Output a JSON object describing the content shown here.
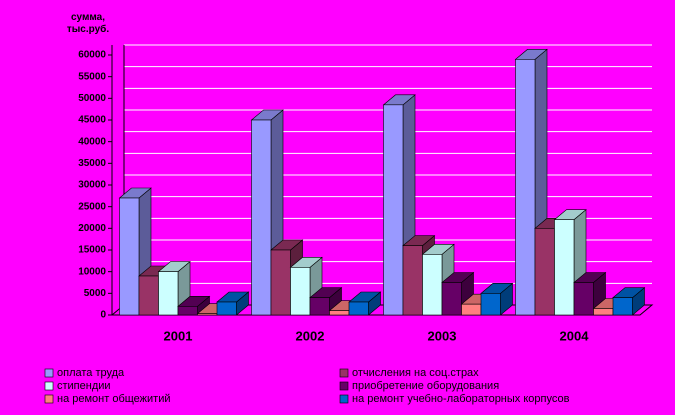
{
  "chart_data": {
    "type": "bar3d",
    "y_label": "сумма, тыс.руб.",
    "categories": [
      "2001",
      "2002",
      "2003",
      "2004"
    ],
    "series": [
      {
        "name": "оплата труда",
        "color": "#9999ff",
        "values": [
          27000,
          45000,
          48500,
          59000
        ]
      },
      {
        "name": "отчисления на соц.страх",
        "color": "#993366",
        "values": [
          9000,
          15000,
          16000,
          20000
        ]
      },
      {
        "name": "стипендии",
        "color": "#ccffff",
        "values": [
          10000,
          11000,
          14000,
          22000
        ]
      },
      {
        "name": "приобретение оборудования",
        "color": "#660066",
        "values": [
          2000,
          4000,
          7500,
          7500
        ]
      },
      {
        "name": "на ремонт общежитий",
        "color": "#ff8080",
        "values": [
          300,
          1000,
          2500,
          1500
        ]
      },
      {
        "name": "на ремонт учебно-лабораторных корпусов",
        "color": "#0066cc",
        "values": [
          3000,
          3000,
          5000,
          4000
        ]
      }
    ],
    "ylim": [
      0,
      60000
    ],
    "yticks": [
      0,
      5000,
      10000,
      15000,
      20000,
      25000,
      30000,
      35000,
      40000,
      45000,
      50000,
      55000,
      60000
    ],
    "grid": true
  }
}
